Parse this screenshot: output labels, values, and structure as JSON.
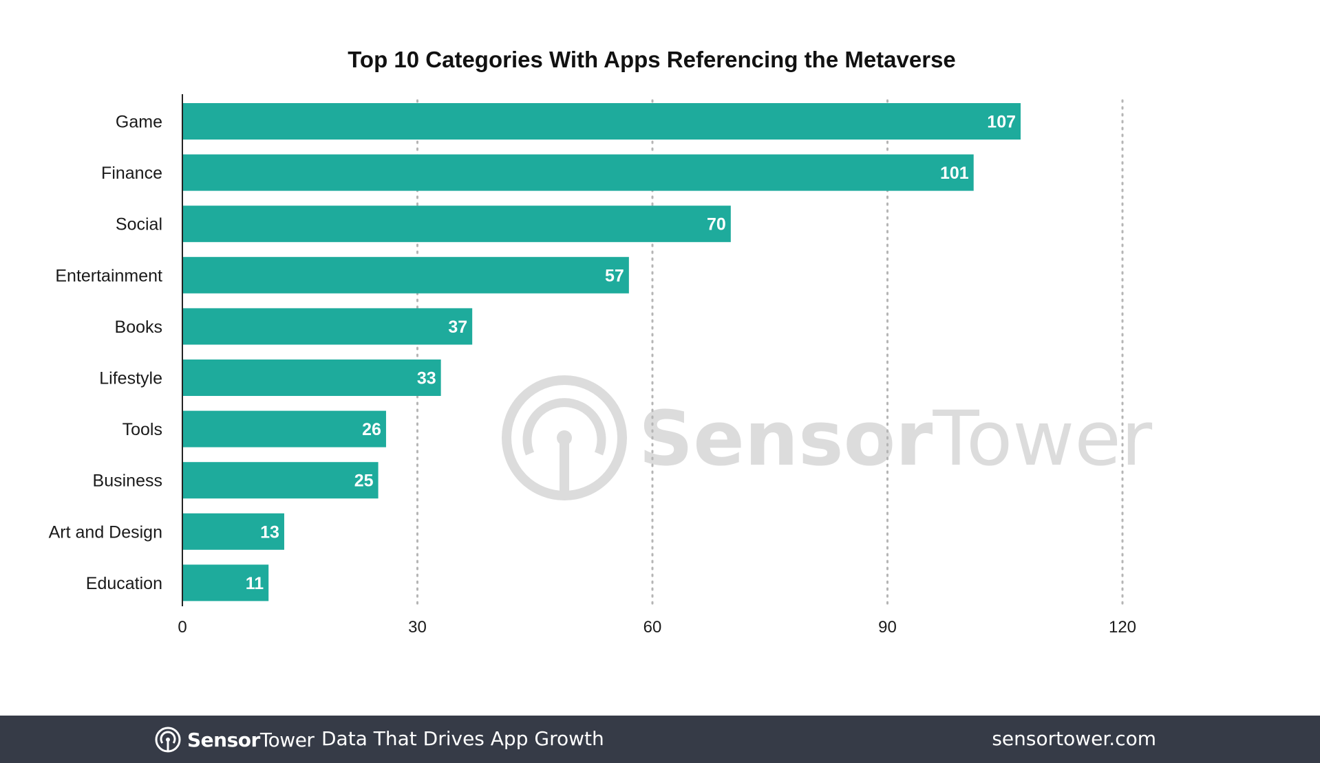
{
  "chart_data": {
    "type": "bar",
    "orientation": "horizontal",
    "title": "Top 10 Categories With Apps Referencing the Metaverse",
    "categories": [
      "Game",
      "Finance",
      "Social",
      "Entertainment",
      "Books",
      "Lifestyle",
      "Tools",
      "Business",
      "Art and Design",
      "Education"
    ],
    "values": [
      107,
      101,
      70,
      57,
      37,
      33,
      26,
      25,
      13,
      11
    ],
    "xlim": [
      0,
      120
    ],
    "xticks": [
      "0",
      "30",
      "60",
      "90",
      "120"
    ],
    "xlabel": "",
    "ylabel": "",
    "grid": "vertical dotted",
    "data_labels": true,
    "bar_color": "#1eab9c"
  },
  "watermark": {
    "brand_bold": "Sensor",
    "brand_regular": "Tower",
    "icon": "sensortower-logo-icon",
    "color": "#d9d9d9"
  },
  "footer": {
    "brand_bold": "Sensor",
    "brand_regular": "Tower",
    "icon": "sensortower-logo-icon",
    "tagline": "Data That Drives App Growth",
    "url": "sensortower.com",
    "background": "#363b47"
  }
}
